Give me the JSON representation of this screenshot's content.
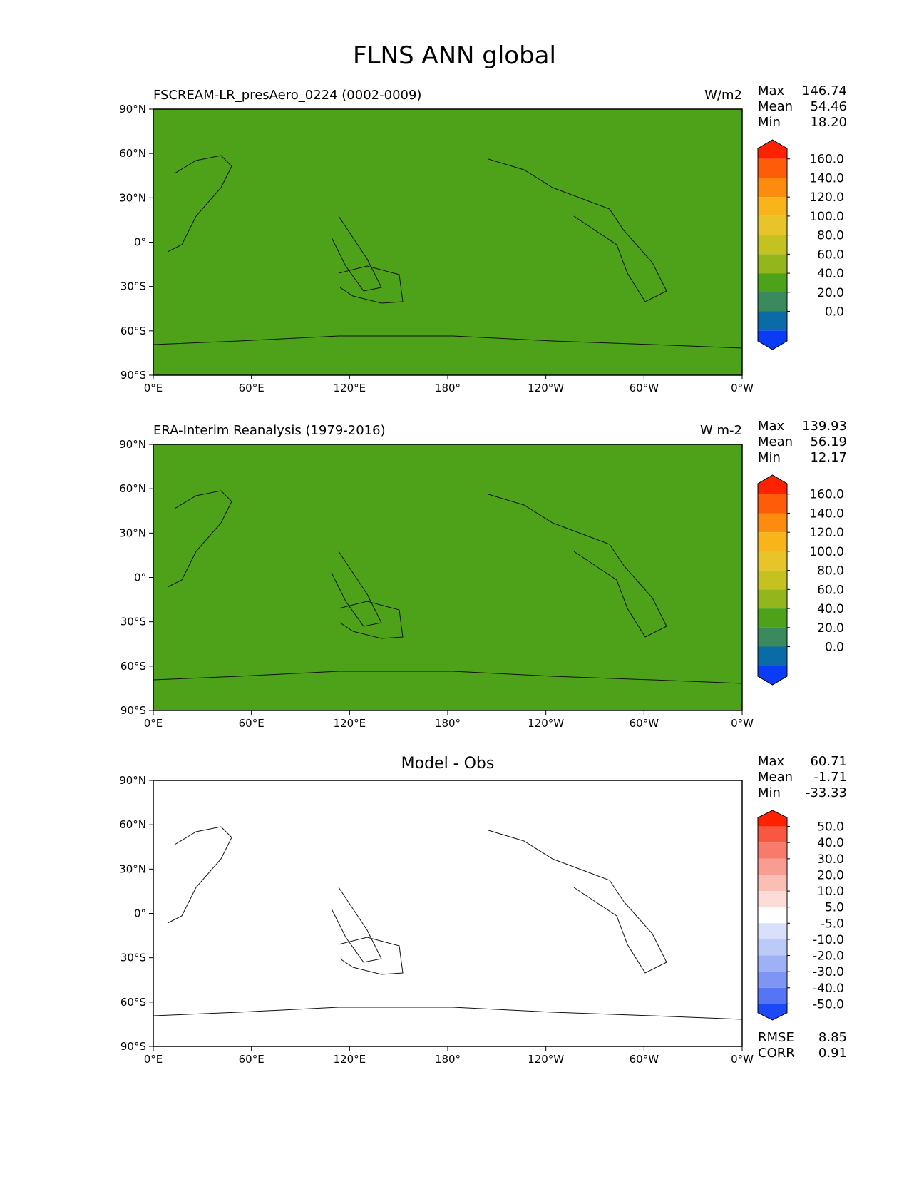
{
  "title": "FLNS ANN global",
  "x_ticks": [
    "0°E",
    "60°E",
    "120°E",
    "180°",
    "120°W",
    "60°W",
    "0°W"
  ],
  "y_ticks": [
    "90°N",
    "60°N",
    "30°N",
    "0°",
    "30°S",
    "60°S",
    "90°S"
  ],
  "panels": [
    {
      "name": "FSCREAM-LR_presAero_0224 (0002-0009)",
      "units": "W/m2",
      "title": "",
      "stats": [
        {
          "label": "Max",
          "value": "146.74"
        },
        {
          "label": "Mean",
          "value": "54.46"
        },
        {
          "label": "Min",
          "value": "18.20"
        }
      ],
      "colorbar": {
        "labels": [
          "160.0",
          "140.0",
          "120.0",
          "100.0",
          "80.0",
          "60.0",
          "40.0",
          "20.0",
          "0.0"
        ],
        "colors": [
          "#ff2200",
          "#ff5c0a",
          "#fb8c0e",
          "#f7b51a",
          "#e7c52a",
          "#c4c221",
          "#93b61c",
          "#4da21a",
          "#3a8a5e",
          "#0b6ba6",
          "#0a3cf7"
        ]
      }
    },
    {
      "name": "ERA-Interim Reanalysis (1979-2016)",
      "units": "W m-2",
      "title": "",
      "stats": [
        {
          "label": "Max",
          "value": "139.93"
        },
        {
          "label": "Mean",
          "value": "56.19"
        },
        {
          "label": "Min",
          "value": "12.17"
        }
      ],
      "colorbar": {
        "labels": [
          "160.0",
          "140.0",
          "120.0",
          "100.0",
          "80.0",
          "60.0",
          "40.0",
          "20.0",
          "0.0"
        ],
        "colors": [
          "#ff2200",
          "#ff5c0a",
          "#fb8c0e",
          "#f7b51a",
          "#e7c52a",
          "#c4c221",
          "#93b61c",
          "#4da21a",
          "#3a8a5e",
          "#0b6ba6",
          "#0a3cf7"
        ]
      }
    },
    {
      "name": "",
      "units": "",
      "title": "Model - Obs",
      "stats": [
        {
          "label": "Max",
          "value": "60.71"
        },
        {
          "label": "Mean",
          "value": "-1.71"
        },
        {
          "label": "Min",
          "value": "-33.33"
        }
      ],
      "extra_stats": [
        {
          "label": "RMSE",
          "value": "8.85"
        },
        {
          "label": "CORR",
          "value": "0.91"
        }
      ],
      "colorbar": {
        "labels": [
          "50.0",
          "40.0",
          "30.0",
          "20.0",
          "10.0",
          "5.0",
          "-5.0",
          "-10.0",
          "-20.0",
          "-30.0",
          "-40.0",
          "-50.0"
        ],
        "colors": [
          "#ff2200",
          "#f8583f",
          "#f77a6b",
          "#f89d92",
          "#f9beb6",
          "#fbdcd7",
          "#ffffff",
          "#d9e0fb",
          "#bccaf8",
          "#9fb1f5",
          "#7e95f4",
          "#5575f5",
          "#1d48f8"
        ]
      }
    }
  ],
  "fills": {
    "panel1": "#4da21a",
    "panel2": "#4da21a",
    "panel3": "#ffffff"
  }
}
